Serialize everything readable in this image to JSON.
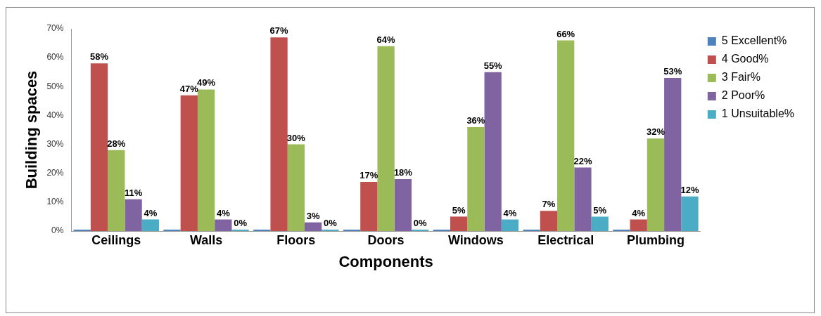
{
  "chart_data": {
    "type": "bar",
    "xlabel": "Components",
    "ylabel": "Building spaces",
    "categories": [
      "Ceilings",
      "Walls",
      "Floors",
      "Doors",
      "Windows",
      "Electrical",
      "Plumbing"
    ],
    "series": [
      {
        "name": "5 Excellent%",
        "color": "#4f81bd",
        "values": [
          0,
          0,
          0,
          0,
          0,
          0,
          0
        ],
        "value_labels": [
          null,
          null,
          null,
          null,
          null,
          null,
          null
        ]
      },
      {
        "name": "4 Good%",
        "color": "#c0504d",
        "values": [
          58,
          47,
          67,
          17,
          5,
          7,
          4
        ],
        "value_labels": [
          "58%",
          "47%",
          "67%",
          "17%",
          "5%",
          "7%",
          "4%"
        ]
      },
      {
        "name": "3 Fair%",
        "color": "#9bbb59",
        "values": [
          28,
          49,
          30,
          64,
          36,
          66,
          32
        ],
        "value_labels": [
          "28%",
          "49%",
          "30%",
          "64%",
          "36%",
          "66%",
          "32%"
        ]
      },
      {
        "name": "2 Poor%",
        "color": "#8064a2",
        "values": [
          11,
          4,
          3,
          18,
          55,
          22,
          53
        ],
        "value_labels": [
          "11%",
          "4%",
          "3%",
          "18%",
          "55%",
          "22%",
          "53%"
        ]
      },
      {
        "name": "1 Unsuitable%",
        "color": "#4bacc6",
        "values": [
          4,
          0,
          0,
          0,
          4,
          5,
          12
        ],
        "value_labels": [
          "4%",
          "0%",
          "0%",
          "0%",
          "4%",
          "5%",
          "12%"
        ]
      }
    ],
    "ylim": [
      0,
      70
    ],
    "yticks": [
      {
        "value": 0,
        "label": "0%"
      },
      {
        "value": 10,
        "label": "10%"
      },
      {
        "value": 20,
        "label": "20%"
      },
      {
        "value": 30,
        "label": "30%"
      },
      {
        "value": 40,
        "label": "40%"
      },
      {
        "value": 50,
        "label": "50%"
      },
      {
        "value": 60,
        "label": "60%"
      },
      {
        "value": 70,
        "label": "70%"
      }
    ],
    "grid": false,
    "legend": "right"
  }
}
